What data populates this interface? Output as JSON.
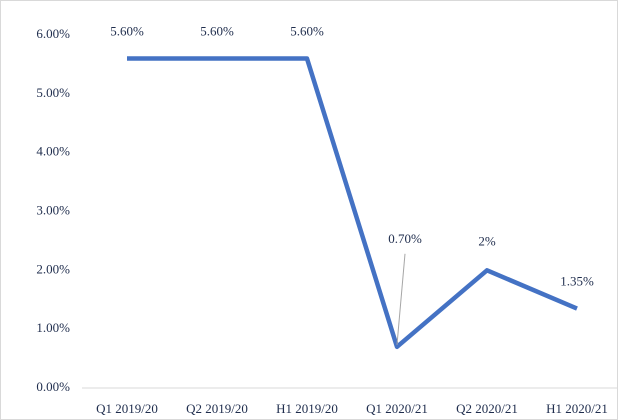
{
  "chart_data": {
    "type": "line",
    "categories": [
      "Q1 2019/20",
      "Q2 2019/20",
      "H1 2019/20",
      "Q1 2020/21",
      "Q2 2020/21",
      "H1 2020/21"
    ],
    "values": [
      5.6,
      5.6,
      5.6,
      0.7,
      2,
      1.35
    ],
    "value_labels": [
      "5.60%",
      "5.60%",
      "5.60%",
      "0.70%",
      "2%",
      "1.35%"
    ],
    "color": "#4472c4",
    "ylim": [
      0,
      6
    ],
    "yticks": [
      {
        "value": 0,
        "label": "0.00%"
      },
      {
        "value": 1,
        "label": "1.00%"
      },
      {
        "value": 2,
        "label": "2.00%"
      },
      {
        "value": 3,
        "label": "3.00%"
      },
      {
        "value": 4,
        "label": "4.00%"
      },
      {
        "value": 5,
        "label": "5.00%"
      },
      {
        "value": 6,
        "label": "6.00%"
      }
    ],
    "grid": false
  }
}
